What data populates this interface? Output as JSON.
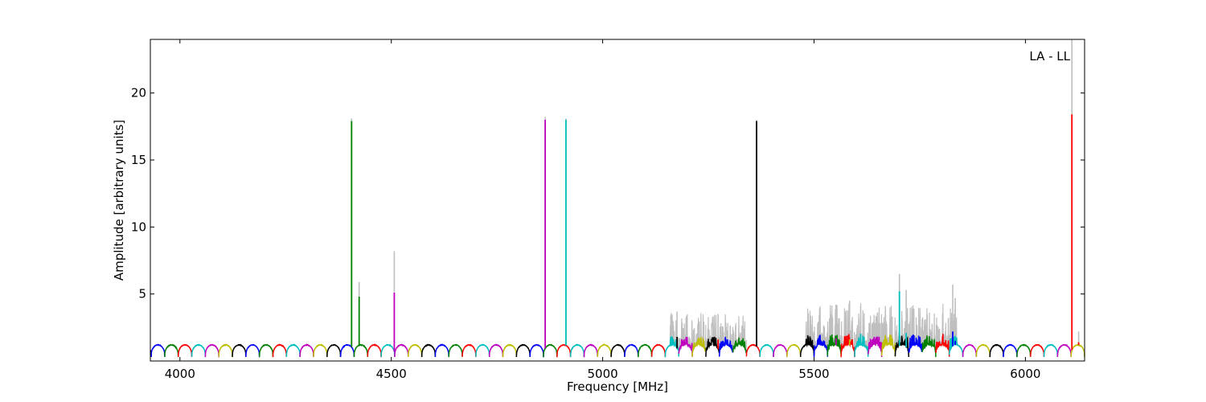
{
  "chart_data": {
    "type": "line",
    "title": "",
    "xlabel": "Frequency [MHz]",
    "ylabel": "Amplitude [arbitrary units]",
    "annotation": "LA - LL",
    "xlim": [
      3930,
      6140
    ],
    "ylim": [
      0,
      24
    ],
    "xticks": [
      4000,
      4500,
      5000,
      5500,
      6000
    ],
    "yticks": [
      5,
      10,
      15,
      20
    ],
    "grid": false,
    "legend": "none",
    "channel_colors": [
      "#0000ff",
      "#008000",
      "#ff0000",
      "#00bfbf",
      "#bf00bf",
      "#bfbf00",
      "#000000"
    ],
    "raw_color": "#bfbfbf",
    "baseline": {
      "start": 3932,
      "channel_width_mhz": 32,
      "low": 0.3,
      "high": 1.2
    },
    "noise_regions": [
      {
        "x": [
          5160,
          5340
        ],
        "level": 1.9
      },
      {
        "x": [
          5480,
          5840
        ],
        "level": 2.4
      }
    ],
    "spikes": [
      {
        "x": 4406,
        "raw": 18.1,
        "value": 17.9,
        "color": "#008000"
      },
      {
        "x": 4424,
        "raw": 5.9,
        "value": 4.8,
        "color": "#008000"
      },
      {
        "x": 4507,
        "raw": 8.2,
        "value": 5.1,
        "color": "#bf00bf"
      },
      {
        "x": 4864,
        "raw": 18.2,
        "value": 18.0,
        "color": "#bf00bf"
      },
      {
        "x": 4913,
        "raw": 18.1,
        "value": 18.0,
        "color": "#00bfbf"
      },
      {
        "x": 5364,
        "raw": 18.0,
        "value": 17.9,
        "color": "#000000"
      },
      {
        "x": 5176,
        "raw": 3.7,
        "value": 1.8,
        "color": "#000000"
      },
      {
        "x": 5273,
        "raw": 3.5,
        "value": 1.6,
        "color": "#ff0000"
      },
      {
        "x": 5552,
        "raw": 4.2,
        "value": 1.7,
        "color": "#bf00bf"
      },
      {
        "x": 5584,
        "raw": 4.5,
        "value": 1.6,
        "color": "#bfbf00"
      },
      {
        "x": 5702,
        "raw": 6.5,
        "value": 5.2,
        "color": "#00bfbf"
      },
      {
        "x": 5718,
        "raw": 5.3,
        "value": 2.1,
        "color": "#00bfbf"
      },
      {
        "x": 5828,
        "raw": 5.7,
        "value": 2.2,
        "color": "#0000ff"
      },
      {
        "x": 5834,
        "raw": 4.7,
        "value": 1.5,
        "color": "#0000ff"
      },
      {
        "x": 6110,
        "raw": 24.0,
        "value": 18.4,
        "color": "#ff0000"
      },
      {
        "x": 6126,
        "raw": 2.2,
        "value": 1.4,
        "color": "#ff0000"
      }
    ]
  }
}
